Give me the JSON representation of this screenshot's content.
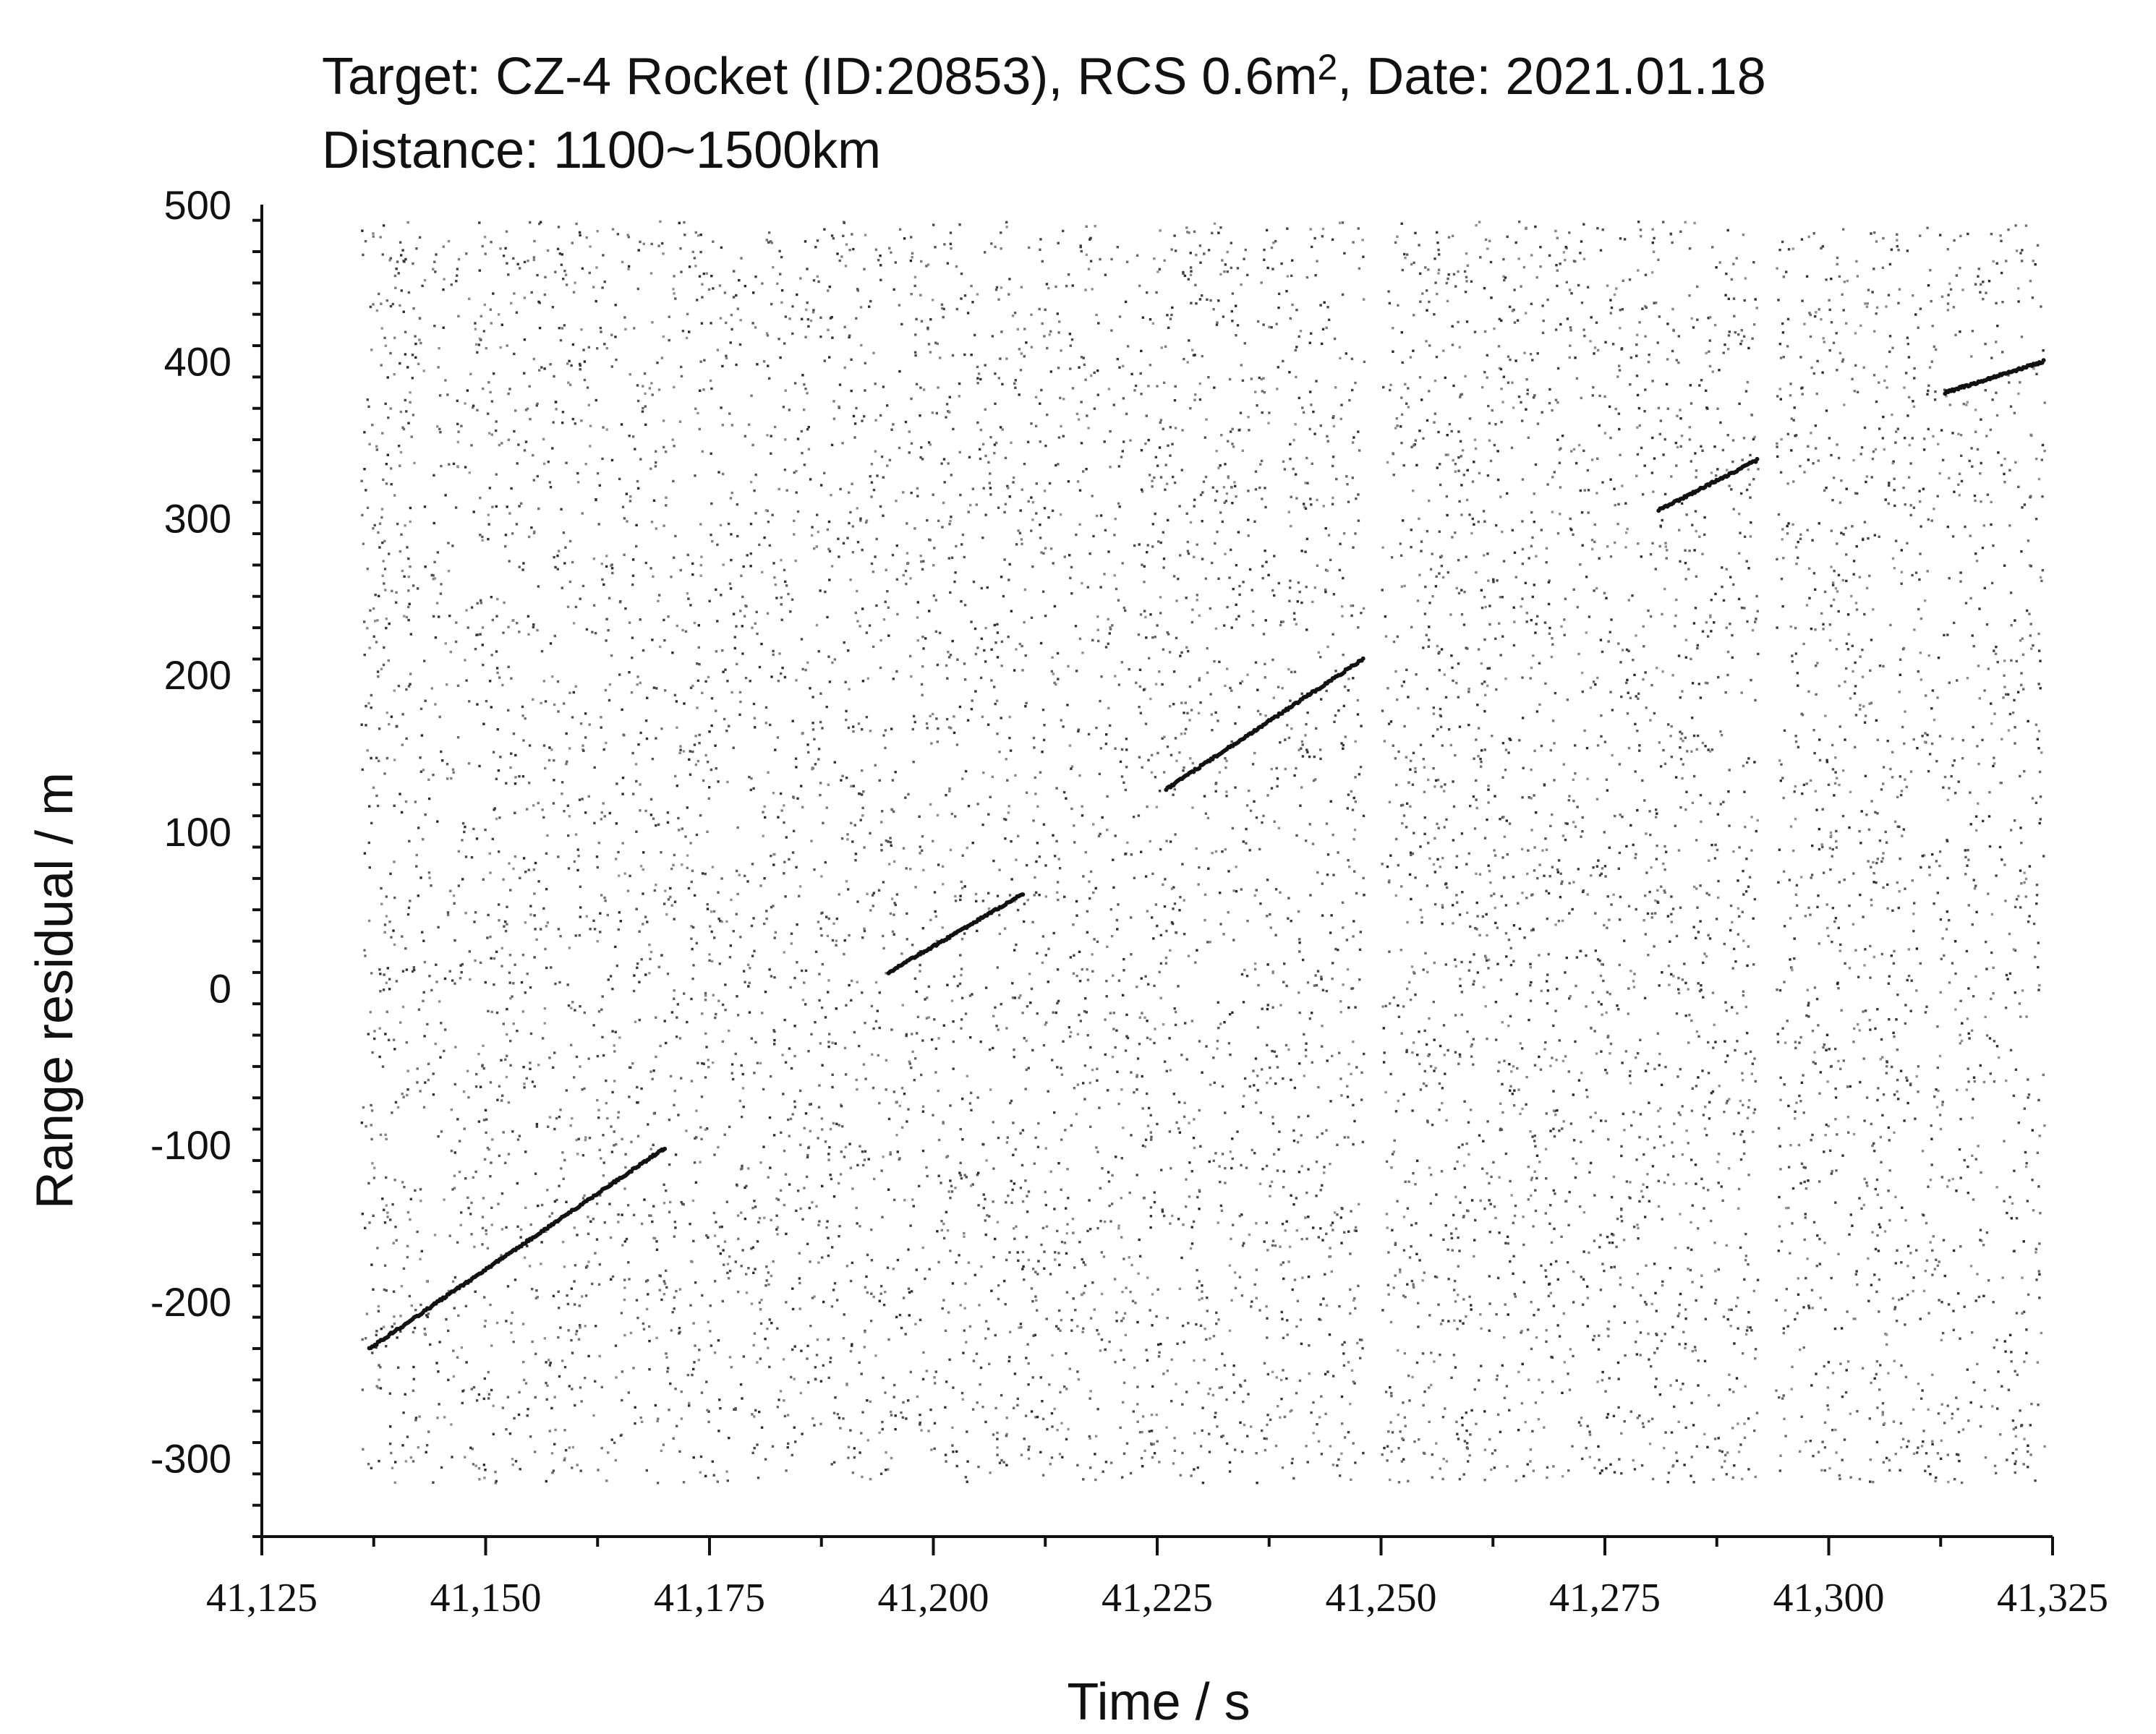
{
  "chart_data": {
    "type": "scatter",
    "title_line1_main": "Target: CZ-4 Rocket (ID:20853), RCS 0.6m",
    "title_line1_sup": "2",
    "title_line1_tail": ", Date: 2021.01.18",
    "title_line2": "Distance: 1100~1500km",
    "xlabel": "Time / s",
    "ylabel": "Range residual / m",
    "xlim": [
      41125,
      41325
    ],
    "ylim": [
      -350,
      500
    ],
    "x_ticks": [
      41125,
      41150,
      41175,
      41200,
      41225,
      41250,
      41275,
      41300,
      41325
    ],
    "x_tick_labels": [
      "41,125",
      "41,150",
      "41,175",
      "41,200",
      "41,225",
      "41,250",
      "41,275",
      "41,300",
      "41,325"
    ],
    "y_ticks": [
      -300,
      -200,
      -100,
      0,
      100,
      200,
      300,
      400,
      500
    ],
    "y_tick_labels": [
      "-300",
      "-200",
      "-100",
      "0",
      "100",
      "200",
      "300",
      "400",
      "500"
    ],
    "grid": false,
    "noise_points_per_segment": [
      5600,
      2300,
      1500
    ],
    "noise_y_range": [
      -315,
      490
    ],
    "noise_segments": [
      {
        "x_start": 41136,
        "x_end": 41248
      },
      {
        "x_start": 41250,
        "x_end": 41292
      },
      {
        "x_start": 41294,
        "x_end": 41324
      }
    ],
    "track_segments": [
      {
        "x": [
          41137,
          41170
        ],
        "y": [
          -230,
          -102
        ]
      },
      {
        "x": [
          41195,
          41210
        ],
        "y": [
          10,
          60
        ]
      },
      {
        "x": [
          41226,
          41248
        ],
        "y": [
          127,
          210
        ]
      },
      {
        "x": [
          41281,
          41292
        ],
        "y": [
          305,
          337
        ]
      },
      {
        "x": [
          41313,
          41324
        ],
        "y": [
          380,
          400
        ]
      }
    ],
    "point_color": "#2a2a2a",
    "track_color": "#111111"
  }
}
